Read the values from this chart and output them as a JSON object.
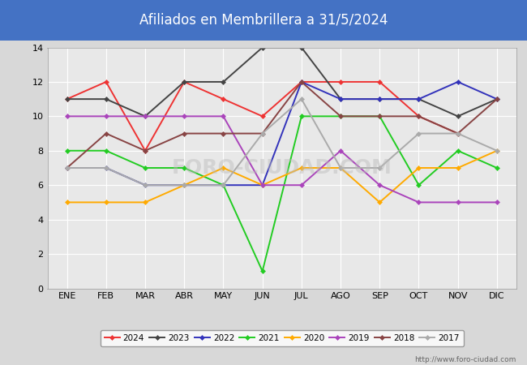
{
  "title": "Afiliados en Membrillera a 31/5/2024",
  "title_color": "#ffffff",
  "title_bg_color": "#4472c4",
  "months": [
    "ENE",
    "FEB",
    "MAR",
    "ABR",
    "MAY",
    "JUN",
    "JUL",
    "AGO",
    "SEP",
    "OCT",
    "NOV",
    "DIC"
  ],
  "series": {
    "2024": {
      "color": "#ee3333",
      "data": [
        11,
        12,
        8,
        12,
        11,
        10,
        12,
        12,
        12,
        10,
        9,
        null
      ]
    },
    "2023": {
      "color": "#444444",
      "data": [
        11,
        11,
        10,
        12,
        12,
        14,
        14,
        11,
        11,
        11,
        10,
        11
      ]
    },
    "2022": {
      "color": "#3333bb",
      "data": [
        7,
        7,
        6,
        6,
        6,
        6,
        12,
        11,
        11,
        11,
        12,
        11
      ]
    },
    "2021": {
      "color": "#22cc22",
      "data": [
        8,
        8,
        7,
        7,
        6,
        1,
        10,
        10,
        10,
        6,
        8,
        7
      ]
    },
    "2020": {
      "color": "#ffaa00",
      "data": [
        5,
        5,
        5,
        6,
        7,
        6,
        7,
        7,
        5,
        7,
        7,
        8
      ]
    },
    "2019": {
      "color": "#aa44bb",
      "data": [
        10,
        10,
        10,
        10,
        10,
        6,
        6,
        8,
        6,
        5,
        5,
        5
      ]
    },
    "2018": {
      "color": "#884444",
      "data": [
        7,
        9,
        8,
        9,
        9,
        9,
        12,
        10,
        10,
        10,
        9,
        11
      ]
    },
    "2017": {
      "color": "#aaaaaa",
      "data": [
        7,
        7,
        6,
        6,
        6,
        9,
        11,
        7,
        7,
        9,
        9,
        8
      ]
    }
  },
  "ylim": [
    0,
    14
  ],
  "yticks": [
    0,
    2,
    4,
    6,
    8,
    10,
    12,
    14
  ],
  "watermark": "http://www.foro-ciudad.com",
  "outer_bg_color": "#d8d8d8",
  "plot_bg_color": "#e8e8e8",
  "grid_color": "#ffffff"
}
